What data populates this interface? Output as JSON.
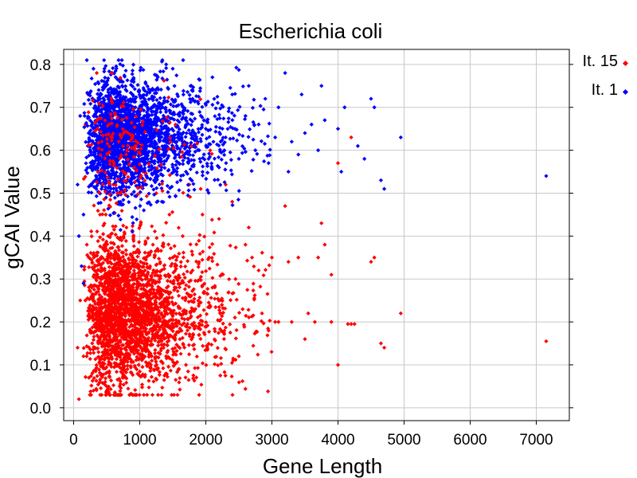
{
  "chart_data": {
    "type": "scatter",
    "title": "Escherichia coli",
    "xlabel": "Gene Length",
    "ylabel": "gCAI Value",
    "xlim": [
      -150,
      7500
    ],
    "ylim": [
      -0.03,
      0.835
    ],
    "xticks": [
      0,
      1000,
      2000,
      3000,
      4000,
      5000,
      6000,
      7000
    ],
    "xtick_labels": [
      "0",
      "1000",
      "2000",
      "3000",
      "4000",
      "5000",
      "6000",
      "7000"
    ],
    "yticks": [
      0.0,
      0.1,
      0.2,
      0.3,
      0.4,
      0.5,
      0.6,
      0.7,
      0.8
    ],
    "ytick_labels": [
      "0.0",
      "0.1",
      "0.2",
      "0.3",
      "0.4",
      "0.5",
      "0.6",
      "0.7",
      "0.8"
    ],
    "grid": true,
    "legend_position": "top-right outside",
    "series": [
      {
        "name": "It. 15",
        "color": "#ff0000",
        "description_points": [
          [
            7150,
            0.155
          ],
          [
            4950,
            0.22
          ],
          [
            4650,
            0.15
          ],
          [
            4700,
            0.14
          ],
          [
            4500,
            0.34
          ],
          [
            4550,
            0.35
          ],
          [
            4200,
            0.63
          ],
          [
            4000,
            0.57
          ],
          [
            4200,
            0.195
          ],
          [
            4150,
            0.195
          ],
          [
            4250,
            0.195
          ],
          [
            4000,
            0.1
          ],
          [
            3750,
            0.43
          ],
          [
            3800,
            0.38
          ],
          [
            3900,
            0.31
          ],
          [
            3900,
            0.2
          ],
          [
            3700,
            0.35
          ],
          [
            3650,
            0.2
          ],
          [
            3500,
            0.16
          ],
          [
            3550,
            0.22
          ],
          [
            3200,
            0.47
          ],
          [
            3250,
            0.34
          ],
          [
            3400,
            0.35
          ],
          [
            3300,
            0.2
          ],
          [
            3100,
            0.2
          ],
          [
            3050,
            0.2
          ],
          [
            3000,
            0.35
          ],
          [
            2950,
            0.18
          ],
          [
            2850,
            0.22
          ],
          [
            2800,
            0.32
          ],
          [
            2700,
            0.35
          ],
          [
            2650,
            0.42
          ],
          [
            2600,
            0.38
          ],
          [
            2500,
            0.12
          ],
          [
            2450,
            0.3
          ],
          [
            2400,
            0.48
          ],
          [
            2300,
            0.52
          ],
          [
            2200,
            0.44
          ],
          [
            2100,
            0.28
          ],
          [
            2050,
            0.35
          ],
          [
            1950,
            0.45
          ],
          [
            1900,
            0.17
          ],
          [
            1800,
            0.32
          ],
          [
            1750,
            0.52
          ],
          [
            1700,
            0.1
          ],
          [
            1650,
            0.4
          ],
          [
            1600,
            0.22
          ],
          [
            1550,
            0.28
          ],
          [
            1500,
            0.35
          ],
          [
            1450,
            0.45
          ],
          [
            1400,
            0.12
          ],
          [
            1350,
            0.2
          ],
          [
            1300,
            0.3
          ],
          [
            1250,
            0.5
          ],
          [
            1200,
            0.38
          ],
          [
            1150,
            0.25
          ],
          [
            1100,
            0.15
          ],
          [
            1050,
            0.55
          ],
          [
            1000,
            0.33
          ],
          [
            950,
            0.2
          ],
          [
            900,
            0.28
          ],
          [
            850,
            0.6
          ],
          [
            800,
            0.42
          ],
          [
            750,
            0.1
          ],
          [
            700,
            0.24
          ],
          [
            650,
            0.35
          ],
          [
            600,
            0.52
          ],
          [
            550,
            0.18
          ],
          [
            500,
            0.3
          ],
          [
            450,
            0.64
          ],
          [
            400,
            0.45
          ],
          [
            350,
            0.78
          ],
          [
            300,
            0.22
          ],
          [
            250,
            0.6
          ],
          [
            200,
            0.38
          ],
          [
            150,
            0.12
          ],
          [
            100,
            0.25
          ],
          [
            80,
            0.02
          ],
          [
            60,
            0.14
          ],
          [
            220,
            0.73
          ],
          [
            180,
            0.66
          ],
          [
            300,
            0.04
          ],
          [
            400,
            0.06
          ],
          [
            500,
            0.05
          ]
        ]
      },
      {
        "name": "It. 1",
        "color": "#0000ff",
        "description_points": [
          [
            7150,
            0.54
          ],
          [
            4950,
            0.63
          ],
          [
            4700,
            0.51
          ],
          [
            4650,
            0.53
          ],
          [
            4550,
            0.7
          ],
          [
            4500,
            0.72
          ],
          [
            4400,
            0.58
          ],
          [
            4300,
            0.61
          ],
          [
            4100,
            0.7
          ],
          [
            4000,
            0.65
          ],
          [
            4050,
            0.55
          ],
          [
            3800,
            0.67
          ],
          [
            3750,
            0.75
          ],
          [
            3700,
            0.6
          ],
          [
            3600,
            0.66
          ],
          [
            3500,
            0.64
          ],
          [
            3450,
            0.73
          ],
          [
            3400,
            0.59
          ],
          [
            3300,
            0.62
          ],
          [
            3250,
            0.55
          ],
          [
            3200,
            0.78
          ],
          [
            3100,
            0.7
          ],
          [
            3050,
            0.63
          ],
          [
            2950,
            0.57
          ],
          [
            2900,
            0.72
          ],
          [
            2800,
            0.66
          ],
          [
            2750,
            0.6
          ],
          [
            2650,
            0.75
          ],
          [
            2600,
            0.68
          ],
          [
            2500,
            0.58
          ],
          [
            2400,
            0.73
          ],
          [
            2300,
            0.63
          ],
          [
            2200,
            0.56
          ],
          [
            2100,
            0.77
          ],
          [
            2000,
            0.65
          ],
          [
            1900,
            0.6
          ],
          [
            1800,
            0.72
          ],
          [
            1700,
            0.55
          ],
          [
            1600,
            0.68
          ],
          [
            1500,
            0.79
          ],
          [
            1400,
            0.8
          ],
          [
            1300,
            0.62
          ],
          [
            1200,
            0.74
          ],
          [
            1100,
            0.52
          ],
          [
            1000,
            0.66
          ],
          [
            900,
            0.7
          ],
          [
            800,
            0.58
          ],
          [
            700,
            0.76
          ],
          [
            600,
            0.64
          ],
          [
            500,
            0.5
          ],
          [
            400,
            0.72
          ],
          [
            300,
            0.79
          ],
          [
            250,
            0.56
          ],
          [
            200,
            0.81
          ],
          [
            150,
            0.45
          ],
          [
            100,
            0.68
          ],
          [
            80,
            0.4
          ],
          [
            60,
            0.52
          ],
          [
            120,
            0.33
          ],
          [
            150,
            0.29
          ]
        ]
      }
    ],
    "note": "Dense point clouds: It. 15 (red) concentrated at gene length ~0-2000, gCAI ~0.05-0.55; It. 1 (blue) concentrated at gene length ~0-2500, gCAI ~0.35-0.8."
  }
}
